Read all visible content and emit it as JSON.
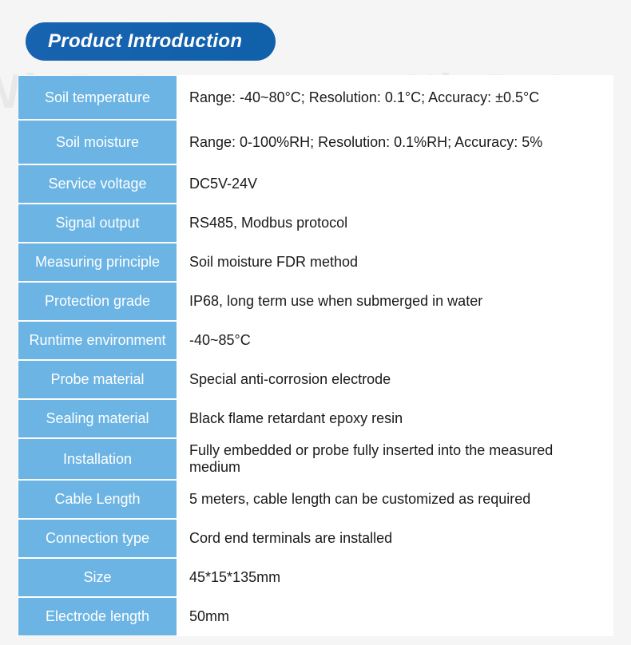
{
  "title": "Product Introduction",
  "watermark_text": "NiuBoL",
  "colors": {
    "header_bg_start": "#1863b0",
    "header_bg_end": "#1060aa",
    "cell_key_bg": "#6cb4e4",
    "cell_value_bg": "#ffffff",
    "page_bg": "#f5f5f5",
    "text_dark": "#1a1a1a",
    "text_light": "#ffffff"
  },
  "rows": [
    {
      "key": "Soil temperature",
      "value": "Range: -40~80°C;  Resolution: 0.1°C;  Accuracy: ±0.5°C",
      "tall": true
    },
    {
      "key": "Soil moisture",
      "value": "Range: 0-100%RH;  Resolution: 0.1%RH;  Accuracy: 5%",
      "tall": true
    },
    {
      "key": "Service voltage",
      "value": "DC5V-24V"
    },
    {
      "key": "Signal output",
      "value": "RS485, Modbus protocol"
    },
    {
      "key": "Measuring principle",
      "value": "Soil moisture FDR method"
    },
    {
      "key": "Protection grade",
      "value": "IP68, long term use when submerged in water"
    },
    {
      "key": "Runtime environment",
      "value": "-40~85°C"
    },
    {
      "key": "Probe material",
      "value": "Special anti-corrosion electrode"
    },
    {
      "key": "Sealing material",
      "value": "Black flame retardant epoxy resin"
    },
    {
      "key": "Installation",
      "value": "Fully embedded or probe fully inserted into the measured medium"
    },
    {
      "key": "Cable Length",
      "value": "5 meters, cable length can be customized as required"
    },
    {
      "key": "Connection type",
      "value": "Cord end terminals are installed"
    },
    {
      "key": "Size",
      "value": "45*15*135mm"
    },
    {
      "key": "Electrode length",
      "value": "50mm"
    }
  ]
}
